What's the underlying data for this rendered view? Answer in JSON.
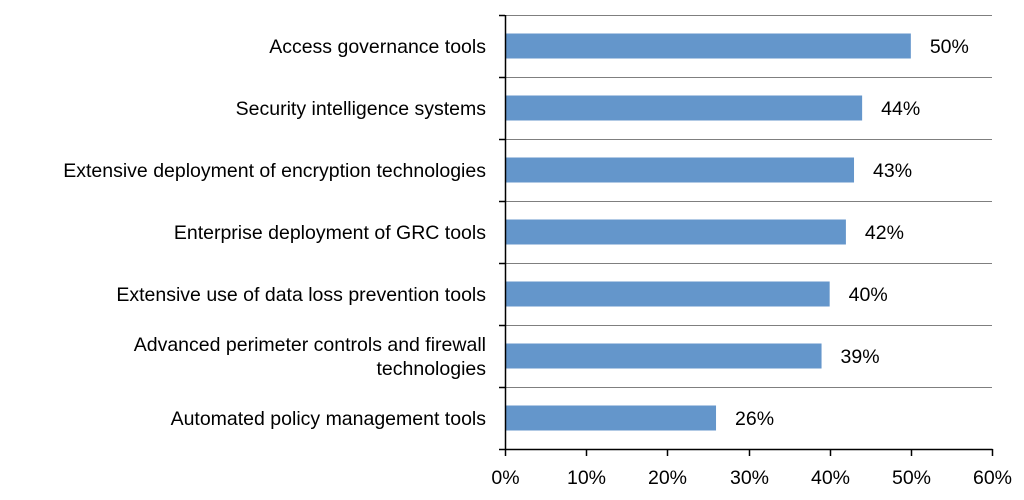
{
  "chart_data": {
    "type": "bar",
    "orientation": "horizontal",
    "categories": [
      [
        "Access governance tools"
      ],
      [
        "Security intelligence systems"
      ],
      [
        "Extensive deployment of encryption technologies"
      ],
      [
        "Enterprise deployment of GRC tools"
      ],
      [
        "Extensive use of data loss prevention tools"
      ],
      [
        "Advanced perimeter controls and firewall",
        "technologies"
      ],
      [
        "Automated policy management tools"
      ]
    ],
    "values": [
      50,
      44,
      43,
      42,
      40,
      39,
      26
    ],
    "data_labels": [
      "50%",
      "44%",
      "43%",
      "42%",
      "40%",
      "39%",
      "26%"
    ],
    "x_ticks": [
      0,
      10,
      20,
      30,
      40,
      50,
      60
    ],
    "x_tick_labels": [
      "0%",
      "10%",
      "20%",
      "30%",
      "40%",
      "50%",
      "60%"
    ],
    "xlim": [
      0,
      60
    ],
    "title": "",
    "xlabel": "",
    "ylabel": "",
    "grid": "horizontal separators between categories",
    "legend": "none",
    "bar_color": "#6496CB",
    "grid_color": "#7F7F7F",
    "axis_color": "#000000"
  }
}
